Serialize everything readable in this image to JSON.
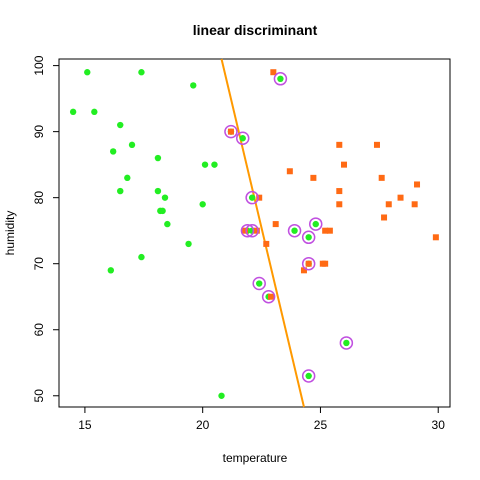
{
  "chart_data": {
    "type": "scatter",
    "title": "linear discriminant",
    "xlabel": "temperature",
    "ylabel": "humidity",
    "xlim": [
      13.9,
      30.5
    ],
    "ylim": [
      48.3,
      101
    ],
    "xticks": [
      15,
      20,
      25,
      30
    ],
    "yticks": [
      50,
      60,
      70,
      80,
      90,
      100
    ],
    "grid": false,
    "legend": "none",
    "colors": {
      "class_a": "#22ee22",
      "class_b": "#ff6a14",
      "boundary": "#ff9900",
      "highlight": "#c050e0"
    },
    "boundary_line": {
      "from": [
        20.8,
        101
      ],
      "to": [
        24.3,
        48.3
      ]
    },
    "series": [
      {
        "marker": "circle",
        "color": "#22ee22",
        "points": [
          [
            14.5,
            93
          ],
          [
            15.1,
            99
          ],
          [
            15.4,
            93
          ],
          [
            16.1,
            69
          ],
          [
            16.2,
            87
          ],
          [
            16.5,
            91
          ],
          [
            16.5,
            81
          ],
          [
            16.8,
            83
          ],
          [
            17.0,
            88
          ],
          [
            17.4,
            99
          ],
          [
            17.4,
            71
          ],
          [
            18.1,
            86
          ],
          [
            18.1,
            81
          ],
          [
            18.2,
            78
          ],
          [
            18.3,
            78
          ],
          [
            18.4,
            80
          ],
          [
            18.5,
            76
          ],
          [
            19.4,
            73
          ],
          [
            19.6,
            97
          ],
          [
            20.0,
            79
          ],
          [
            20.1,
            85
          ],
          [
            20.5,
            85
          ],
          [
            20.8,
            50
          ],
          [
            21.2,
            90
          ],
          [
            21.7,
            89
          ],
          [
            21.9,
            75
          ],
          [
            22.1,
            80
          ],
          [
            22.1,
            75
          ],
          [
            22.4,
            67
          ],
          [
            22.8,
            65
          ],
          [
            23.3,
            98
          ],
          [
            23.9,
            75
          ],
          [
            24.5,
            74
          ],
          [
            24.5,
            70
          ],
          [
            24.5,
            53
          ],
          [
            24.8,
            76
          ],
          [
            26.1,
            58
          ]
        ]
      },
      {
        "marker": "square",
        "color": "#ff6a14",
        "points": [
          [
            21.2,
            90
          ],
          [
            21.8,
            75
          ],
          [
            22.3,
            75
          ],
          [
            22.4,
            80
          ],
          [
            22.7,
            73
          ],
          [
            22.9,
            65
          ],
          [
            23.0,
            99
          ],
          [
            23.1,
            76
          ],
          [
            23.7,
            84
          ],
          [
            24.3,
            69
          ],
          [
            24.5,
            70
          ],
          [
            24.7,
            83
          ],
          [
            25.1,
            70
          ],
          [
            25.2,
            75
          ],
          [
            25.4,
            75
          ],
          [
            25.2,
            70
          ],
          [
            25.8,
            81
          ],
          [
            25.8,
            79
          ],
          [
            25.8,
            88
          ],
          [
            26.0,
            85
          ],
          [
            27.4,
            88
          ],
          [
            27.6,
            83
          ],
          [
            27.7,
            77
          ],
          [
            27.9,
            79
          ],
          [
            28.4,
            80
          ],
          [
            29.0,
            79
          ],
          [
            29.1,
            82
          ],
          [
            29.9,
            74
          ]
        ]
      }
    ],
    "highlighted": [
      [
        21.2,
        90
      ],
      [
        21.7,
        89
      ],
      [
        23.3,
        98
      ],
      [
        22.1,
        80
      ],
      [
        21.9,
        75
      ],
      [
        22.1,
        75
      ],
      [
        23.9,
        75
      ],
      [
        24.8,
        76
      ],
      [
        24.5,
        74
      ],
      [
        24.5,
        70
      ],
      [
        22.4,
        67
      ],
      [
        22.8,
        65
      ],
      [
        26.1,
        58
      ],
      [
        24.5,
        53
      ]
    ]
  }
}
